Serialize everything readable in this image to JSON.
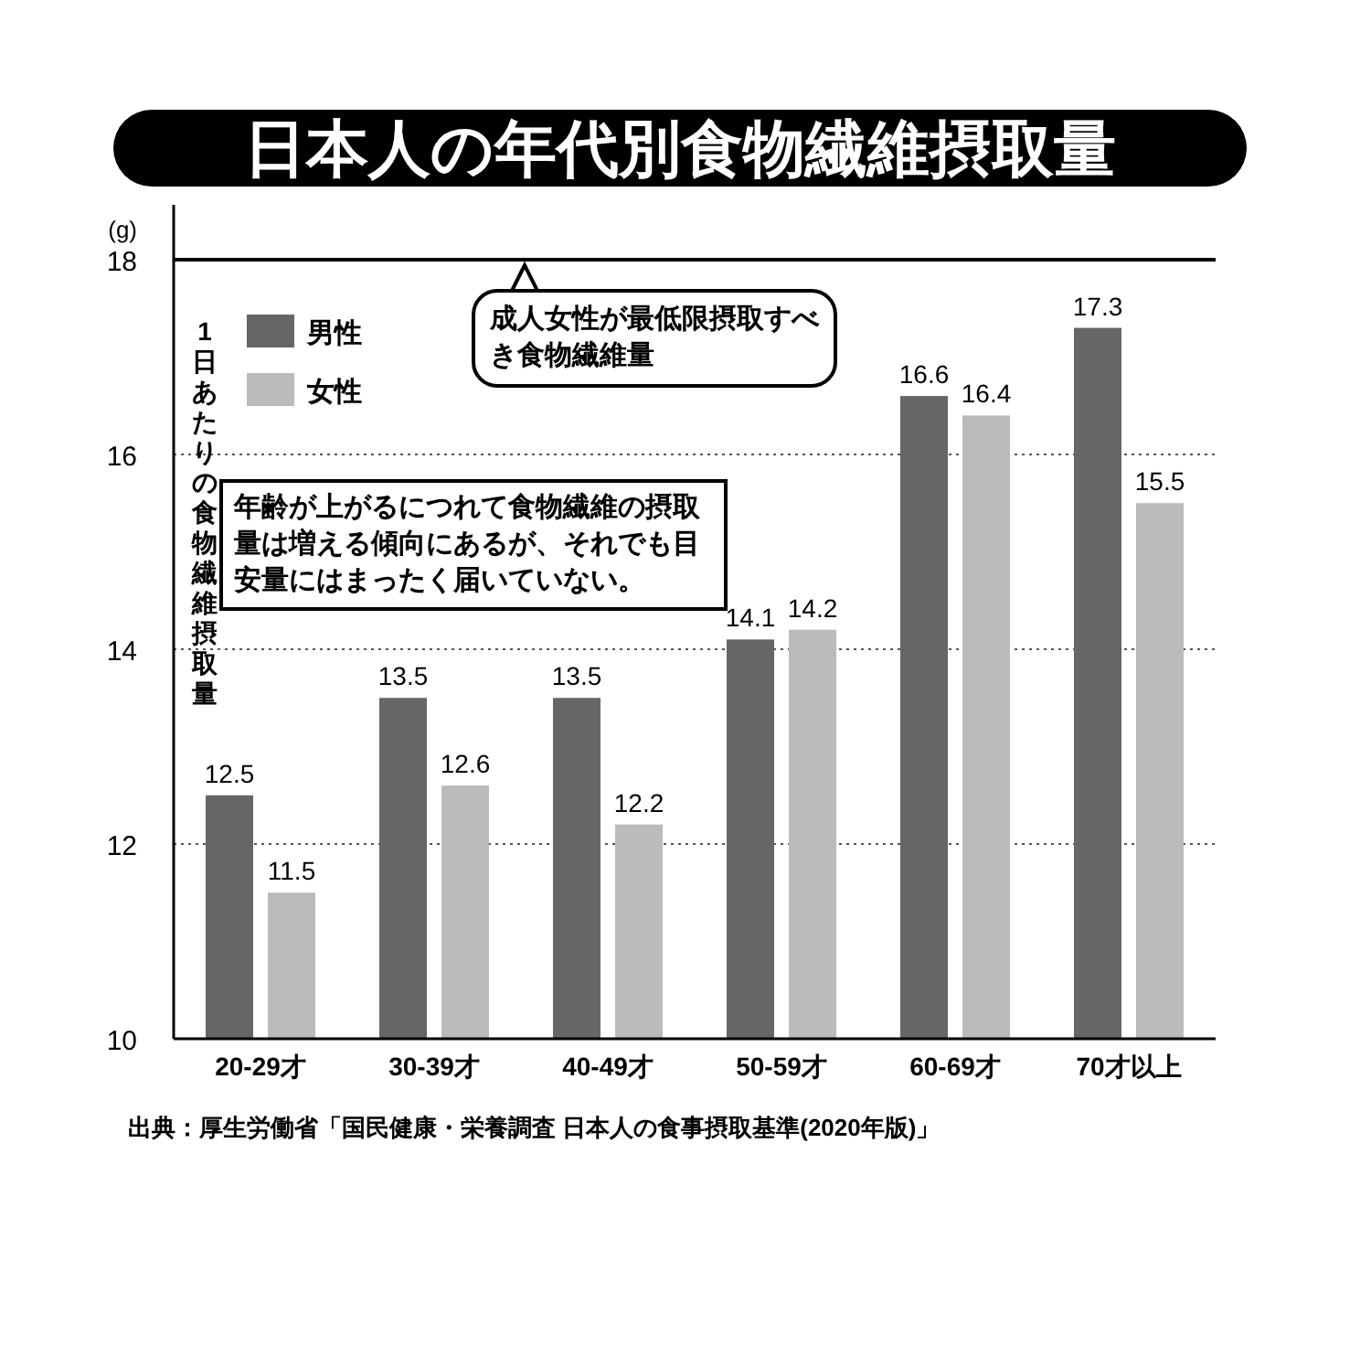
{
  "chart_data": {
    "type": "bar",
    "title": "日本人の年代別食物繊維摂取量",
    "ylabel": "1日あたりの食物繊維摂取量",
    "categories": [
      "20-29才",
      "30-39才",
      "40-49才",
      "50-59才",
      "60-69才",
      "70才以上"
    ],
    "series": [
      {
        "name": "男性",
        "color": "#666666",
        "values": [
          12.5,
          13.5,
          13.5,
          14.1,
          16.6,
          17.3
        ]
      },
      {
        "name": "女性",
        "color": "#bbbbbb",
        "values": [
          11.5,
          12.6,
          12.2,
          14.2,
          16.4,
          15.5
        ]
      }
    ],
    "ylim": [
      10,
      18
    ],
    "yticks": [
      10,
      12,
      14,
      16,
      18
    ],
    "grid": "y",
    "legend": "top left",
    "data_labels": true,
    "ref_lines": [
      {
        "axis": "y",
        "value": 18,
        "label": "成人女性が最低限摂取すべき食物繊維量",
        "color": "#000000"
      }
    ],
    "annotations": [
      "(g)",
      "年齢が上がるにつれて食物繊維の摂取量は増える傾向にあるが、それでも目安量にはまったく届いていない。",
      "出典：厚生労働省「国民健康・栄養調査 日本人の食事摂取基準(2020年版)」"
    ]
  }
}
